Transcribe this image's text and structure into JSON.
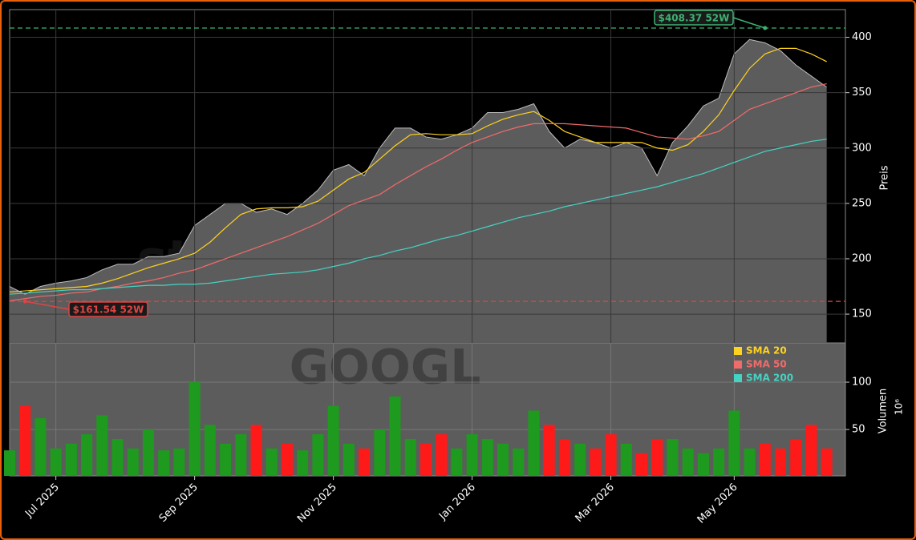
{
  "chart_data": {
    "type": "stock",
    "watermarks": [
      "stocknewsroom.com",
      "GOOGL"
    ],
    "categories": [
      null,
      null,
      null,
      "Jul 2025",
      null,
      null,
      null,
      null,
      null,
      null,
      null,
      null,
      "Sep 2025",
      null,
      null,
      null,
      null,
      null,
      null,
      null,
      null,
      "Nov 2025",
      null,
      null,
      null,
      null,
      null,
      null,
      null,
      null,
      "Jan 2026",
      null,
      null,
      null,
      null,
      null,
      null,
      null,
      null,
      "Mar 2026",
      null,
      null,
      null,
      null,
      null,
      null,
      null,
      "May 2026",
      null,
      null,
      null,
      null,
      null,
      null
    ],
    "price": {
      "color": "#5c5c5c",
      "line_color": "#bdbdbd",
      "values": [
        175,
        168,
        175,
        178,
        180,
        183,
        190,
        195,
        195,
        202,
        202,
        205,
        230,
        240,
        250,
        250,
        242,
        245,
        240,
        250,
        262,
        280,
        285,
        275,
        300,
        318,
        318,
        310,
        308,
        312,
        318,
        332,
        332,
        335,
        340,
        315,
        300,
        308,
        305,
        300,
        305,
        300,
        275,
        305,
        320,
        338,
        345,
        385,
        398,
        395,
        388,
        375,
        365,
        355
      ]
    },
    "series": [
      {
        "name": "SMA 20",
        "color": "#ffd21f",
        "values": [
          170,
          171,
          172,
          173,
          174,
          175,
          178,
          182,
          187,
          192,
          196,
          200,
          205,
          215,
          228,
          240,
          245,
          246,
          246,
          247,
          252,
          262,
          272,
          278,
          290,
          302,
          312,
          313,
          312,
          312,
          313,
          320,
          326,
          330,
          333,
          325,
          315,
          310,
          305,
          305,
          305,
          305,
          300,
          298,
          303,
          315,
          330,
          352,
          372,
          385,
          390,
          390,
          385,
          378
        ]
      },
      {
        "name": "SMA 50",
        "color": "#f26b6b",
        "values": [
          162,
          164,
          166,
          167,
          169,
          170,
          173,
          175,
          178,
          180,
          183,
          187,
          190,
          195,
          200,
          205,
          210,
          215,
          220,
          226,
          232,
          240,
          248,
          253,
          258,
          267,
          275,
          283,
          290,
          298,
          305,
          310,
          315,
          319,
          322,
          322,
          322,
          321,
          320,
          319,
          318,
          314,
          310,
          309,
          308,
          311,
          315,
          325,
          335,
          340,
          345,
          350,
          355,
          358
        ]
      },
      {
        "name": "SMA 200",
        "color": "#45d3c4",
        "values": [
          168,
          169,
          170,
          171,
          172,
          172,
          173,
          174,
          175,
          176,
          176,
          177,
          177,
          178,
          180,
          182,
          184,
          186,
          187,
          188,
          190,
          193,
          196,
          200,
          203,
          207,
          210,
          214,
          218,
          221,
          225,
          229,
          233,
          237,
          240,
          243,
          247,
          250,
          253,
          256,
          259,
          262,
          265,
          269,
          273,
          277,
          282,
          287,
          292,
          297,
          300,
          303,
          306,
          308
        ]
      }
    ],
    "ylim": [
      124,
      425
    ],
    "yticks": [
      150,
      200,
      250,
      300,
      350,
      400
    ],
    "y_label": "Preis",
    "grid": true,
    "annotations": [
      {
        "value": 408.37,
        "label": "$408.37 52W",
        "color": "#3cb371",
        "at": 49
      },
      {
        "value": 161.54,
        "label": "$161.54 52W",
        "color": "#e04444",
        "at": 1
      }
    ],
    "volume": {
      "values": [
        28,
        75,
        62,
        30,
        35,
        45,
        65,
        40,
        30,
        50,
        28,
        30,
        100,
        55,
        35,
        45,
        55,
        30,
        35,
        28,
        45,
        75,
        35,
        30,
        50,
        85,
        40,
        35,
        45,
        30,
        45,
        40,
        35,
        30,
        70,
        55,
        40,
        35,
        30,
        45,
        35,
        25,
        40,
        40,
        30,
        25,
        30,
        70,
        30,
        35,
        30,
        40,
        55,
        30
      ],
      "up_color": "#1e9a1e",
      "down_color": "#ff1a1a",
      "ylim": [
        1,
        141.5
      ],
      "yticks": [
        50,
        100
      ],
      "y_label": "Volumen",
      "y_scale_label": "10⁶"
    }
  }
}
